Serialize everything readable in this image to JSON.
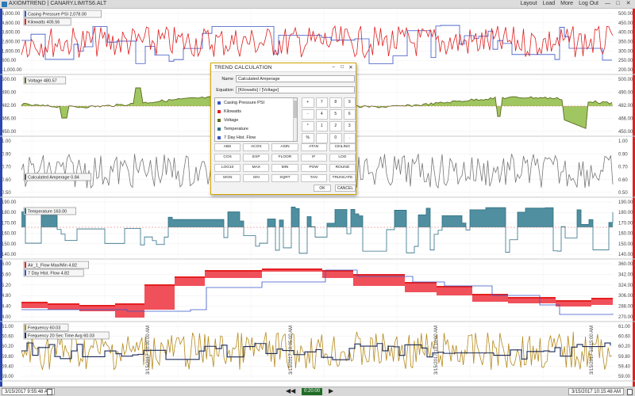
{
  "app": {
    "title": "AXIOMTREND | CANARY.LIMITS6.ALT",
    "menu": [
      "Layout",
      "Load",
      "More",
      "Log Out"
    ],
    "window_controls": [
      "—",
      "□",
      "✕"
    ]
  },
  "panes": [
    {
      "labels": [
        {
          "text": "Casing Pressure PSI 2,078.00",
          "color": "#3a55c8"
        },
        {
          "text": "Kilowatts 405.56",
          "color": "#e02020"
        }
      ],
      "left_ticks": [
        "6,000.00",
        "4,600.00",
        "3,600.00",
        "2,600.00",
        "1,600.00",
        "600.00",
        "-1,000.00"
      ],
      "right_ticks": [
        "500.00",
        "450.00",
        "400.00",
        "350.00",
        "300.00",
        "250.00",
        "200.00"
      ]
    },
    {
      "labels": [
        {
          "text": "Voltage 480.57",
          "color": "#5a6b1e"
        }
      ],
      "left_ticks": [
        "500.00",
        "490.00",
        "482.00",
        "466.00",
        "450.00"
      ],
      "right_ticks": [
        "500.00",
        "490.00",
        "482.00",
        "466.00",
        "450.00"
      ]
    },
    {
      "labels": [
        {
          "text": "Calculated Amperage 0.84",
          "color": "#555555"
        }
      ],
      "left_ticks": [
        "1.00",
        "0.90",
        "0.70",
        "0.60",
        "0.50"
      ],
      "right_ticks": [
        "1.00",
        "0.90",
        "0.70",
        "0.60",
        "0.50"
      ]
    },
    {
      "labels": [
        {
          "text": "Temperature 163.00",
          "color": "#2e6f84"
        }
      ],
      "left_ticks": [
        "190.00",
        "180.00",
        "170.00",
        "160.00",
        "150.00",
        "140.00"
      ],
      "right_ticks": [
        "190.00",
        "180.00",
        "170.00",
        "160.00",
        "150.00",
        "140.00"
      ]
    },
    {
      "labels": [
        {
          "text": "Air_1_Flow Max/Min 4.82",
          "color": "#e02020"
        },
        {
          "text": "7 Day Hist. Flow 4.82",
          "color": "#3a55c8"
        }
      ],
      "left_ticks": [
        "6.00",
        "5.60",
        "5.20",
        "4.80",
        "4.40",
        "4.00"
      ],
      "right_ticks": [
        "360.00",
        "342.00",
        "324.00",
        "306.00",
        "288.00",
        "270.00"
      ]
    },
    {
      "labels": [
        {
          "text": "Frequency 60.03",
          "color": "#b58a1c"
        },
        {
          "text": "Frequency 20 Sec Time Avg 60.03",
          "color": "#1b2b5a"
        }
      ],
      "left_ticks": [
        "61.00",
        "60.60",
        "60.20",
        "59.80",
        "59.40",
        "59.00"
      ],
      "right_ticks": [
        "61.00",
        "60.60",
        "60.20",
        "59.80",
        "59.40",
        "59.00"
      ]
    }
  ],
  "date_marks": [
    "3/15/2017 10:00:00 AM",
    "3/15/2017 10:05:00 AM",
    "3/15/2017 10:10:00 AM",
    "3/15/2017 10:15:00 AM"
  ],
  "bottom": {
    "start_time": "3/15/2017 9:55:48 AM",
    "end_time": "3/15/2017 10:15:48 AM",
    "duration": "0:20:00",
    "prev": "◀◀",
    "next": "▶"
  },
  "dialog": {
    "title": "TREND CALCULATION",
    "name_label": "Name",
    "name_value": "Calculated Amperage",
    "equation_label": "Equation",
    "equation_value": "[Kilowatts] / [Voltage]",
    "tags": [
      {
        "name": "Casing Pressure PSI",
        "color": "#3a55c8"
      },
      {
        "name": "Kilowatts",
        "color": "#e02020"
      },
      {
        "name": "Voltage",
        "color": "#5a6b1e"
      },
      {
        "name": "Temperature",
        "color": "#2e6f84"
      },
      {
        "name": "7 Day Hist. Flow",
        "color": "#3a55c8"
      }
    ],
    "keypad": [
      "+",
      "7",
      "8",
      "9",
      "-",
      "4",
      "5",
      "6",
      "*",
      "1",
      "2",
      "3",
      "%",
      "",
      "0",
      "."
    ],
    "functions": [
      "ABS",
      "ACOS",
      "ASIN",
      "ATAN",
      "CEILING",
      "COS",
      "EXP",
      "FLOOR",
      "IF",
      "LOG",
      "LOG10",
      "MAX",
      "MIN",
      "POW",
      "ROUND",
      "SIGN",
      "SIN",
      "SQRT",
      "TAN",
      "TRUNCATE"
    ],
    "ok_label": "OK",
    "cancel_label": "CANCEL"
  }
}
